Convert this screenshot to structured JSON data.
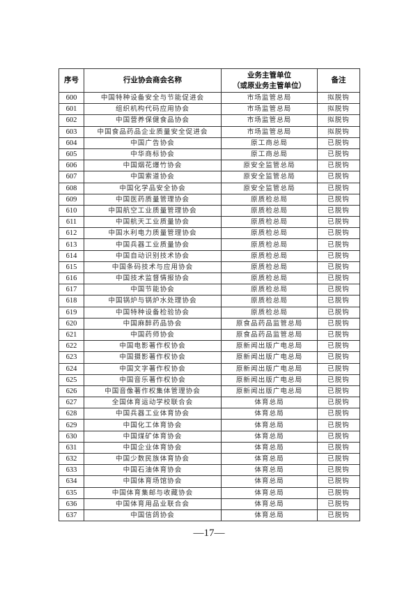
{
  "table": {
    "headers": [
      "序号",
      "行业协会商会名称",
      "业务主管单位",
      "（或原业务主管单位）",
      "备注"
    ],
    "rows": [
      [
        "600",
        "中国特种设备安全与节能促进会",
        "市场监管总局",
        "拟脱钩"
      ],
      [
        "601",
        "组织机构代码应用协会",
        "市场监管总局",
        "拟脱钩"
      ],
      [
        "602",
        "中国营养保健食品协会",
        "市场监管总局",
        "拟脱钩"
      ],
      [
        "603",
        "中国食品药品企业质量安全促进会",
        "市场监管总局",
        "拟脱钩"
      ],
      [
        "604",
        "中国广告协会",
        "原工商总局",
        "已脱钩"
      ],
      [
        "605",
        "中华商标协会",
        "原工商总局",
        "已脱钩"
      ],
      [
        "606",
        "中国烟花爆竹协会",
        "原安全监管总局",
        "已脱钩"
      ],
      [
        "607",
        "中国索道协会",
        "原安全监管总局",
        "已脱钩"
      ],
      [
        "608",
        "中国化学品安全协会",
        "原安全监管总局",
        "已脱钩"
      ],
      [
        "609",
        "中国医药质量管理协会",
        "原质检总局",
        "已脱钩"
      ],
      [
        "610",
        "中国航空工业质量管理协会",
        "原质检总局",
        "已脱钩"
      ],
      [
        "611",
        "中国航天工业质量协会",
        "原质检总局",
        "已脱钩"
      ],
      [
        "612",
        "中国水利电力质量管理协会",
        "原质检总局",
        "已脱钩"
      ],
      [
        "613",
        "中国兵器工业质量协会",
        "原质检总局",
        "已脱钩"
      ],
      [
        "614",
        "中国自动识别技术协会",
        "原质检总局",
        "已脱钩"
      ],
      [
        "615",
        "中国条码技术与应用协会",
        "原质检总局",
        "已脱钩"
      ],
      [
        "616",
        "中国技术监督情报协会",
        "原质检总局",
        "已脱钩"
      ],
      [
        "617",
        "中国节能协会",
        "原质检总局",
        "已脱钩"
      ],
      [
        "618",
        "中国锅炉与锅炉水处理协会",
        "原质检总局",
        "已脱钩"
      ],
      [
        "619",
        "中国特种设备检验协会",
        "原质检总局",
        "已脱钩"
      ],
      [
        "620",
        "中国麻醉药品协会",
        "原食品药品监管总局",
        "已脱钩"
      ],
      [
        "621",
        "中国药师协会",
        "原食品药品监管总局",
        "已脱钩"
      ],
      [
        "622",
        "中国电影著作权协会",
        "原新闻出版广电总局",
        "已脱钩"
      ],
      [
        "623",
        "中国摄影著作权协会",
        "原新闻出版广电总局",
        "已脱钩"
      ],
      [
        "624",
        "中国文字著作权协会",
        "原新闻出版广电总局",
        "已脱钩"
      ],
      [
        "625",
        "中国音乐著作权协会",
        "原新闻出版广电总局",
        "已脱钩"
      ],
      [
        "626",
        "中国音像著作权集体管理协会",
        "原新闻出版广电总局",
        "已脱钩"
      ],
      [
        "627",
        "全国体育运动学校联合会",
        "体育总局",
        "已脱钩"
      ],
      [
        "628",
        "中国兵器工业体育协会",
        "体育总局",
        "已脱钩"
      ],
      [
        "629",
        "中国化工体育协会",
        "体育总局",
        "已脱钩"
      ],
      [
        "630",
        "中国煤矿体育协会",
        "体育总局",
        "已脱钩"
      ],
      [
        "631",
        "中国企业体育协会",
        "体育总局",
        "已脱钩"
      ],
      [
        "632",
        "中国少数民族体育协会",
        "体育总局",
        "已脱钩"
      ],
      [
        "633",
        "中国石油体育协会",
        "体育总局",
        "已脱钩"
      ],
      [
        "634",
        "中国体育场馆协会",
        "体育总局",
        "已脱钩"
      ],
      [
        "635",
        "中国体育集邮与收藏协会",
        "体育总局",
        "已脱钩"
      ],
      [
        "636",
        "中国体育用品业联合会",
        "体育总局",
        "已脱钩"
      ],
      [
        "637",
        "中国信鸽协会",
        "体育总局",
        "已脱钩"
      ]
    ]
  },
  "page_number": "—17—"
}
